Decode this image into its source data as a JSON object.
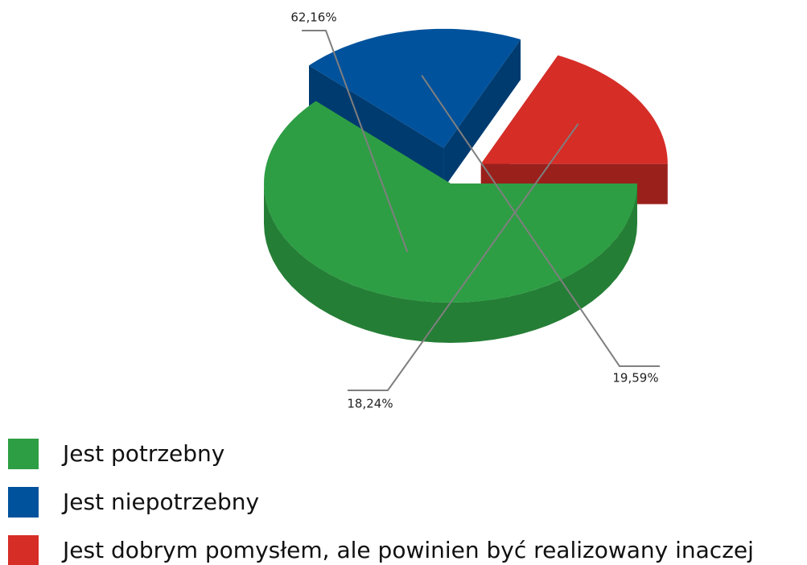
{
  "chart_data": {
    "type": "pie",
    "categories": [
      "Jest potrzebny",
      "Jest niepotrzebny",
      "Jest dobrym pomysłem, ale powinien być realizowany inaczej"
    ],
    "values": [
      62.16,
      19.59,
      18.24
    ],
    "value_labels": [
      "62,16%",
      "19,59%",
      "18,24%"
    ],
    "colors": [
      "#2e9e44",
      "#00529c",
      "#d62d27"
    ],
    "legend": "bottom-left"
  }
}
